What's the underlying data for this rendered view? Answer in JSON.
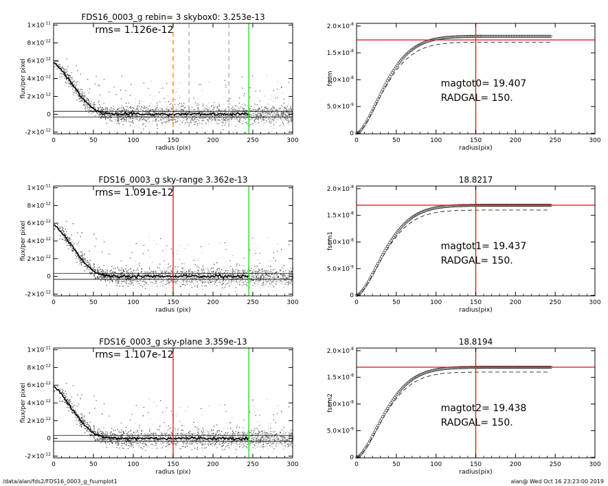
{
  "footer": {
    "path": "/data/alan/fds2/FDS16_0003_g_fsumplot1",
    "stamp": "alan@  Wed Oct 16 23:23:00 2019"
  },
  "colors": {
    "axis": "#000000",
    "points_dark": "#444444",
    "points_light": "#bdbdbd",
    "profile": "#000000",
    "red": "#dd2222",
    "green": "#22dd22",
    "orange": "#ff8c1a",
    "dash_gray": "#b0b0b0"
  },
  "chart_data": [
    {
      "id": "profile-1",
      "type": "scatter",
      "title": "FDS16_0003_g rebin= 3    skybox0:  3.253e-13",
      "annotation": "rms= 1.126e-12",
      "xlabel": "radius (pix)",
      "ylabel": "flux/per pixel",
      "xlim": [
        0,
        300
      ],
      "ylim": [
        -2.2e-12,
        1.02e-11
      ],
      "xticks": [
        "0",
        "50",
        "100",
        "150",
        "200",
        "250",
        "300"
      ],
      "yticks": [
        {
          "v": -2e-12,
          "m": "-2",
          "e": "-12"
        },
        {
          "v": 0,
          "m": "0",
          "e": ""
        },
        {
          "v": 2e-12,
          "m": "2",
          "e": "-12"
        },
        {
          "v": 4e-12,
          "m": "4",
          "e": "-12"
        },
        {
          "v": 6e-12,
          "m": "6",
          "e": "-12"
        },
        {
          "v": 8e-12,
          "m": "8",
          "e": "-12"
        },
        {
          "v": 1e-11,
          "m": "1",
          "e": "-11"
        }
      ],
      "sky_level": 3.253e-13,
      "profile": {
        "x": [
          0,
          5,
          10,
          20,
          30,
          40,
          50,
          60,
          70,
          80,
          100,
          150,
          200,
          245
        ],
        "y": [
          5.8e-12,
          5.5e-12,
          5e-12,
          3.8e-12,
          2.5e-12,
          1.4e-12,
          6e-13,
          2e-13,
          5e-14,
          0,
          0,
          0,
          0,
          0
        ]
      },
      "markers": [
        {
          "x": 150,
          "color": "orange",
          "style": "dash"
        },
        {
          "x": 170,
          "color": "dash_gray",
          "style": "dash"
        },
        {
          "x": 220,
          "color": "dash_gray",
          "style": "dash"
        },
        {
          "x": 245,
          "color": "green",
          "style": "solid"
        }
      ]
    },
    {
      "id": "growth-1",
      "type": "scatter",
      "title": "",
      "annotation": [
        "magtot0=  19.407",
        "RADGAL=    150."
      ],
      "xlabel": "radius(pix)",
      "ylabel": "fsum",
      "xlim": [
        0,
        300
      ],
      "ylim": [
        -1e-10,
        2.05e-08
      ],
      "xticks": [
        "0",
        "50",
        "100",
        "150",
        "200",
        "250",
        "300"
      ],
      "yticks": [
        {
          "v": 0,
          "m": "0",
          "e": ""
        },
        {
          "v": 5e-09,
          "m": "5.0",
          "e": "-9"
        },
        {
          "v": 1e-08,
          "m": "1.0",
          "e": "-8"
        },
        {
          "v": 1.5e-08,
          "m": "1.5",
          "e": "-8"
        },
        {
          "v": 2e-08,
          "m": "2.0",
          "e": "-8"
        }
      ],
      "asymptote": 1.81e-08,
      "dashed_asymptote": 1.7e-08,
      "rate": 0.022,
      "hline": 1.74e-08,
      "vline": 150
    },
    {
      "id": "profile-2",
      "type": "scatter",
      "title": "FDS16_0003_g sky-range  3.362e-13",
      "annotation": "rms= 1.091e-12",
      "xlabel": "radius (pix)",
      "ylabel": "flux/per pixel",
      "xlim": [
        0,
        300
      ],
      "ylim": [
        -2.2e-12,
        1.02e-11
      ],
      "xticks": [
        "0",
        "50",
        "100",
        "150",
        "200",
        "250",
        "300"
      ],
      "yticks": [
        {
          "v": -2e-12,
          "m": "-2",
          "e": "-12"
        },
        {
          "v": 0,
          "m": "0",
          "e": ""
        },
        {
          "v": 2e-12,
          "m": "2",
          "e": "-12"
        },
        {
          "v": 4e-12,
          "m": "4",
          "e": "-12"
        },
        {
          "v": 6e-12,
          "m": "6",
          "e": "-12"
        },
        {
          "v": 8e-12,
          "m": "8",
          "e": "-12"
        },
        {
          "v": 1e-11,
          "m": "1",
          "e": "-11"
        }
      ],
      "sky_level": 3.362e-13,
      "profile": {
        "x": [
          0,
          5,
          10,
          20,
          30,
          40,
          50,
          60,
          70,
          80,
          100,
          150,
          200,
          245
        ],
        "y": [
          5.8e-12,
          5.5e-12,
          5e-12,
          3.8e-12,
          2.5e-12,
          1.4e-12,
          6e-13,
          2e-13,
          5e-14,
          0,
          0,
          0,
          0,
          0
        ]
      },
      "markers": [
        {
          "x": 150,
          "color": "red",
          "style": "solid"
        },
        {
          "x": 245,
          "color": "green",
          "style": "solid"
        }
      ]
    },
    {
      "id": "growth-2",
      "type": "scatter",
      "title": "18.8217",
      "annotation": [
        "magtot1=  19.437",
        "RADGAL=    150."
      ],
      "xlabel": "radius(pix)",
      "ylabel": "fsum1",
      "xlim": [
        0,
        300
      ],
      "ylim": [
        -1e-10,
        2.05e-08
      ],
      "xticks": [
        "0",
        "50",
        "100",
        "150",
        "200",
        "250",
        "300"
      ],
      "yticks": [
        {
          "v": 0,
          "m": "0",
          "e": ""
        },
        {
          "v": 5e-09,
          "m": "5.0",
          "e": "-9"
        },
        {
          "v": 1e-08,
          "m": "1.0",
          "e": "-8"
        },
        {
          "v": 1.5e-08,
          "m": "1.5",
          "e": "-8"
        },
        {
          "v": 2e-08,
          "m": "2.0",
          "e": "-8"
        }
      ],
      "asymptote": 1.69e-08,
      "dashed_asymptote": 1.6e-08,
      "rate": 0.022,
      "hline": 1.69e-08,
      "vline": 150
    },
    {
      "id": "profile-3",
      "type": "scatter",
      "title": "FDS16_0003_g sky-plane  3.359e-13",
      "annotation": "rms= 1.107e-12",
      "xlabel": "radius (pix)",
      "ylabel": "flux/per pixel",
      "xlim": [
        0,
        300
      ],
      "ylim": [
        -2.2e-12,
        1.02e-11
      ],
      "xticks": [
        "0",
        "50",
        "100",
        "150",
        "200",
        "250",
        "300"
      ],
      "yticks": [
        {
          "v": -2e-12,
          "m": "-2",
          "e": "-12"
        },
        {
          "v": 0,
          "m": "0",
          "e": ""
        },
        {
          "v": 2e-12,
          "m": "2",
          "e": "-12"
        },
        {
          "v": 4e-12,
          "m": "4",
          "e": "-12"
        },
        {
          "v": 6e-12,
          "m": "6",
          "e": "-12"
        },
        {
          "v": 8e-12,
          "m": "8",
          "e": "-12"
        },
        {
          "v": 1e-11,
          "m": "1",
          "e": "-11"
        }
      ],
      "sky_level": 3.359e-13,
      "profile": {
        "x": [
          0,
          5,
          10,
          20,
          30,
          40,
          50,
          60,
          70,
          80,
          100,
          150,
          200,
          245
        ],
        "y": [
          5.8e-12,
          5.5e-12,
          5e-12,
          3.8e-12,
          2.5e-12,
          1.4e-12,
          6e-13,
          2e-13,
          5e-14,
          0,
          0,
          0,
          0,
          0
        ]
      },
      "markers": [
        {
          "x": 150,
          "color": "red",
          "style": "solid"
        },
        {
          "x": 245,
          "color": "green",
          "style": "solid"
        }
      ]
    },
    {
      "id": "growth-3",
      "type": "scatter",
      "title": "18.8194",
      "annotation": [
        "magtot2=  19.438",
        "RADGAL=    150."
      ],
      "xlabel": "radius(pix)",
      "ylabel": "fsum2",
      "xlim": [
        0,
        300
      ],
      "ylim": [
        -1e-10,
        2.05e-08
      ],
      "xticks": [
        "0",
        "50",
        "100",
        "150",
        "200",
        "250",
        "300"
      ],
      "yticks": [
        {
          "v": 0,
          "m": "0",
          "e": ""
        },
        {
          "v": 5e-09,
          "m": "5.0",
          "e": "-9"
        },
        {
          "v": 1e-08,
          "m": "1.0",
          "e": "-8"
        },
        {
          "v": 1.5e-08,
          "m": "1.5",
          "e": "-8"
        },
        {
          "v": 2e-08,
          "m": "2.0",
          "e": "-8"
        }
      ],
      "asymptote": 1.69e-08,
      "dashed_asymptote": 1.6e-08,
      "rate": 0.022,
      "hline": 1.69e-08,
      "vline": 150
    }
  ]
}
